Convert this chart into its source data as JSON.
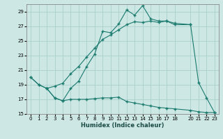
{
  "xlabel": "Humidex (Indice chaleur)",
  "bg_color": "#cde8e4",
  "grid_color": "#aad0cc",
  "line_color": "#1a7a6e",
  "line1_x": [
    0,
    1,
    2,
    3,
    4,
    5,
    6,
    7,
    8,
    9,
    10,
    11,
    12,
    13,
    14,
    15,
    16,
    17,
    18,
    20,
    21,
    22,
    23
  ],
  "line1_y": [
    20.0,
    19.0,
    18.5,
    17.2,
    16.8,
    18.5,
    19.5,
    21.5,
    23.2,
    26.3,
    26.1,
    27.3,
    29.2,
    28.5,
    29.8,
    28.0,
    27.7,
    27.7,
    27.4,
    27.2,
    19.3,
    17.2,
    15.2
  ],
  "line2_x": [
    0,
    1,
    2,
    3,
    4,
    5,
    6,
    7,
    8,
    9,
    10,
    11,
    12,
    13,
    14,
    15,
    16,
    17,
    18,
    20
  ],
  "line2_y": [
    20.0,
    19.0,
    18.5,
    18.8,
    19.2,
    20.5,
    21.5,
    22.8,
    24.0,
    25.2,
    25.8,
    26.5,
    27.2,
    27.6,
    27.5,
    27.7,
    27.5,
    27.7,
    27.2,
    27.2
  ],
  "line3_x": [
    2,
    3,
    4,
    5,
    6,
    7,
    8,
    9,
    10,
    11,
    12,
    13,
    14,
    15,
    16,
    17,
    18,
    20,
    21,
    22,
    23
  ],
  "line3_y": [
    18.5,
    17.2,
    16.8,
    17.0,
    17.0,
    17.0,
    17.1,
    17.2,
    17.2,
    17.3,
    16.7,
    16.5,
    16.3,
    16.1,
    15.9,
    15.8,
    15.7,
    15.5,
    15.3,
    15.2,
    15.2
  ],
  "ylim": [
    15,
    30
  ],
  "xlim": [
    -0.5,
    23.5
  ],
  "yticks": [
    15,
    17,
    19,
    21,
    23,
    25,
    27,
    29
  ],
  "xticks": [
    0,
    1,
    2,
    3,
    4,
    5,
    6,
    7,
    8,
    9,
    10,
    11,
    12,
    13,
    14,
    15,
    16,
    17,
    18,
    20,
    21,
    22,
    23
  ]
}
